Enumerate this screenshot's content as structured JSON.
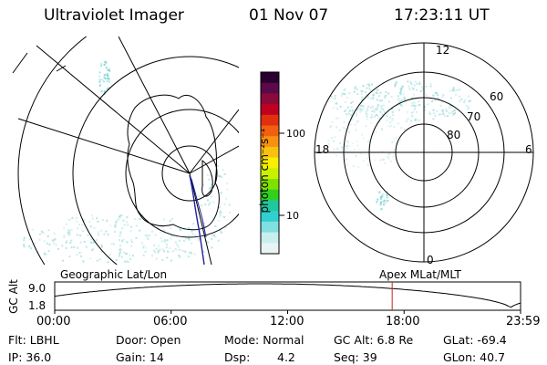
{
  "header": {
    "title": "Ultraviolet Imager",
    "date": "01 Nov 07",
    "time": "17:23:11 UT"
  },
  "colorbar": {
    "label": "photon cm⁻²s⁻¹",
    "ticks": [
      "100",
      "10"
    ],
    "colors": [
      "#2a0030",
      "#5a0a48",
      "#8a0a3a",
      "#c00020",
      "#e03010",
      "#f06010",
      "#f89010",
      "#f8c010",
      "#f8f000",
      "#c8f000",
      "#80e000",
      "#30d020",
      "#20c8a0",
      "#30d0d0",
      "#80e0e0",
      "#c8eeee",
      "#e8f4f4"
    ]
  },
  "left_map": {
    "label": "Geographic Lat/Lon",
    "aurora_color": "#a0dcdc",
    "track_color": "#2020a0"
  },
  "polar_plot": {
    "label": "Apex MLat/MLT",
    "ring_labels": [
      "60",
      "70",
      "80"
    ],
    "mlt_labels": {
      "top": "12",
      "left": "18",
      "right": "6",
      "bottom": "0"
    },
    "aurora_color": "#a0dcdc"
  },
  "altitude_strip": {
    "axis_label": "GC Alt",
    "ymax_label": "9.0",
    "ymin_label": "1.8",
    "x_ticks": [
      "00:00",
      "06:00",
      "12:00",
      "18:00",
      "23:59"
    ],
    "marker_color": "#cc2020",
    "current_time_fraction": 0.7244
  },
  "info": {
    "flt": "Flt: LBHL",
    "door": "Door: Open",
    "mode": "Mode: Normal",
    "gcalt": "GC Alt: 6.8 Re",
    "glat": "GLat: -69.4",
    "ip": "IP: 36.0",
    "gain": "Gain: 14",
    "dsp_label": "Dsp:",
    "dsp_value": "4.2",
    "seq": "Seq: 39",
    "glon": "GLon:  40.7"
  }
}
